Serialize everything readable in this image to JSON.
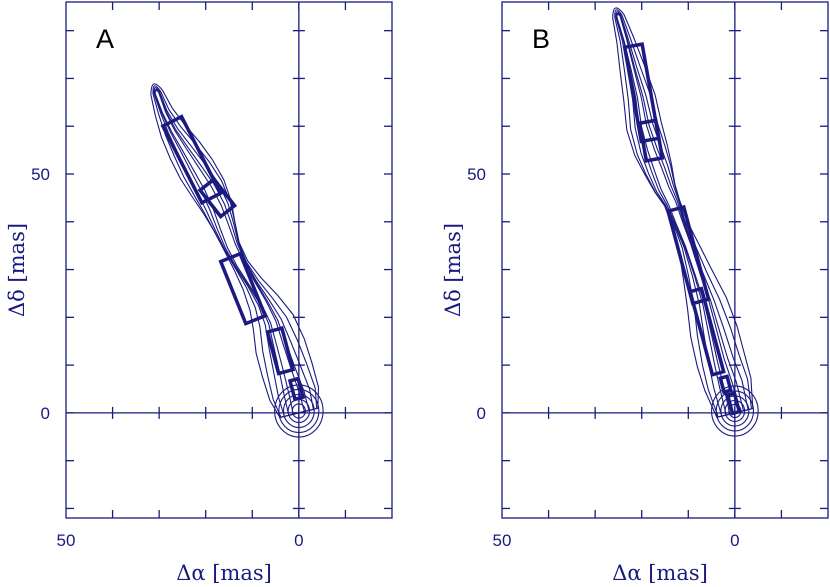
{
  "chart_data": [
    {
      "type": "contour",
      "title": "A",
      "xlabel": "Δα [mas]",
      "ylabel": "Δδ [mas]",
      "x_direction": "reversed",
      "xlim": [
        50,
        -20
      ],
      "ylim": [
        -22,
        86
      ],
      "x_tick_labels": [
        "50",
        "0"
      ],
      "y_tick_labels": [
        "50",
        "0"
      ],
      "grid": false,
      "colors": {
        "line": "#1a1a80",
        "title": "#000000"
      },
      "ridge": [
        [
          0,
          0
        ],
        [
          1,
          4
        ],
        [
          2.5,
          9
        ],
        [
          4,
          14
        ],
        [
          5.5,
          19
        ],
        [
          7.5,
          23
        ],
        [
          10,
          27
        ],
        [
          12.5,
          31
        ],
        [
          14.5,
          35
        ],
        [
          16,
          39
        ],
        [
          17.5,
          43
        ],
        [
          19.5,
          47
        ],
        [
          22,
          51
        ],
        [
          24.5,
          55
        ],
        [
          27,
          59
        ],
        [
          29,
          63
        ],
        [
          30.5,
          67
        ]
      ],
      "contour_widths": [
        3.8,
        3.0,
        2.2,
        1.5,
        0.9
      ],
      "core_radii": [
        5.2,
        4.3,
        3.3,
        2.3,
        1.4
      ],
      "components": [
        {
          "center": [
            0.5,
            5
          ],
          "length": 4,
          "width": 1.8,
          "pa_deg": 15
        },
        {
          "center": [
            4,
            13
          ],
          "length": 9,
          "width": 3.2,
          "pa_deg": 15
        },
        {
          "center": [
            12,
            26
          ],
          "length": 14,
          "width": 4.5,
          "pa_deg": 22
        },
        {
          "center": [
            17.5,
            45
          ],
          "length": 7,
          "width": 3.8,
          "pa_deg": 38
        },
        {
          "center": [
            23,
            53
          ],
          "length": 18,
          "width": 4.5,
          "pa_deg": 27
        }
      ]
    },
    {
      "type": "contour",
      "title": "B",
      "xlabel": "Δα [mas]",
      "ylabel": "Δδ [mas]",
      "x_direction": "reversed",
      "xlim": [
        50,
        -20
      ],
      "ylim": [
        -22,
        86
      ],
      "x_tick_labels": [
        "50",
        "0"
      ],
      "y_tick_labels": [
        "50",
        "0"
      ],
      "grid": false,
      "colors": {
        "line": "#1a1a80",
        "title": "#000000"
      },
      "ridge": [
        [
          0,
          0
        ],
        [
          1.5,
          6
        ],
        [
          3,
          11
        ],
        [
          4.5,
          17
        ],
        [
          6,
          23
        ],
        [
          8,
          29
        ],
        [
          10,
          35
        ],
        [
          12,
          40
        ],
        [
          13.5,
          44
        ],
        [
          15,
          47
        ],
        [
          16.5,
          51
        ],
        [
          18,
          55
        ],
        [
          19.5,
          60
        ],
        [
          20.5,
          66
        ],
        [
          22,
          72
        ],
        [
          23.5,
          78
        ],
        [
          25,
          83
        ]
      ],
      "contour_widths": [
        3.6,
        2.8,
        2.0,
        1.3,
        0.8
      ],
      "core_radii": [
        5.0,
        4.0,
        3.0,
        2.1,
        1.3
      ],
      "components": [
        {
          "center": [
            0.3,
            2
          ],
          "length": 4,
          "width": 1.5,
          "pa_deg": 15
        },
        {
          "center": [
            2,
            6
          ],
          "length": 3,
          "width": 1.5,
          "pa_deg": 15
        },
        {
          "center": [
            6,
            17
          ],
          "length": 18,
          "width": 2.5,
          "pa_deg": 15
        },
        {
          "center": [
            10,
            33
          ],
          "length": 20,
          "width": 3.5,
          "pa_deg": 15
        },
        {
          "center": [
            18,
            57
          ],
          "length": 8,
          "width": 3.5,
          "pa_deg": 10
        },
        {
          "center": [
            20,
            67
          ],
          "length": 20,
          "width": 3.8,
          "pa_deg": 10
        }
      ]
    }
  ]
}
